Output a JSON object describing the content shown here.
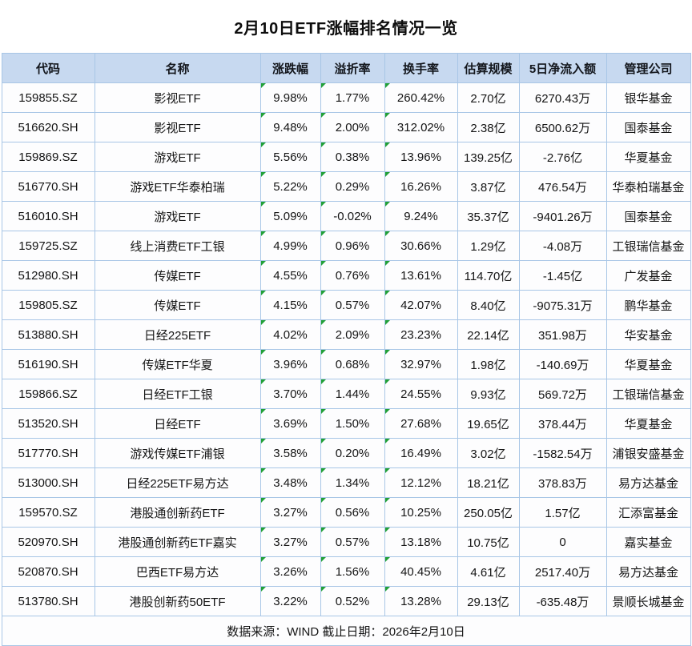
{
  "page": {
    "title": "2月10日ETF涨幅排名情况一览",
    "footer": "数据来源：WIND 截止日期：2026年2月10日"
  },
  "colors": {
    "header_bg": "#c7d9f0",
    "cell_border": "#a8c6e6",
    "outer_border": "#8fb3d8",
    "flag_triangle_green": "#21a038",
    "text": "#151515"
  },
  "icons": {
    "cell_corner_flag": "text-format-flag-icon"
  },
  "chart_data": {
    "type": "table",
    "title": "2月10日ETF涨幅排名情况一览",
    "columns": [
      "代码",
      "名称",
      "涨跌幅",
      "溢折率",
      "换手率",
      "估算规模",
      "5日净流入额",
      "管理公司"
    ],
    "flag_column_indices": [
      2,
      3,
      4
    ],
    "rows": [
      [
        "159855.SZ",
        "影视ETF",
        "9.98%",
        "1.77%",
        "260.42%",
        "2.70亿",
        "6270.43万",
        "银华基金"
      ],
      [
        "516620.SH",
        "影视ETF",
        "9.48%",
        "2.00%",
        "312.02%",
        "2.38亿",
        "6500.62万",
        "国泰基金"
      ],
      [
        "159869.SZ",
        "游戏ETF",
        "5.56%",
        "0.38%",
        "13.96%",
        "139.25亿",
        "-2.76亿",
        "华夏基金"
      ],
      [
        "516770.SH",
        "游戏ETF华泰柏瑞",
        "5.22%",
        "0.29%",
        "16.26%",
        "3.87亿",
        "476.54万",
        "华泰柏瑞基金"
      ],
      [
        "516010.SH",
        "游戏ETF",
        "5.09%",
        "-0.02%",
        "9.24%",
        "35.37亿",
        "-9401.26万",
        "国泰基金"
      ],
      [
        "159725.SZ",
        "线上消费ETF工银",
        "4.99%",
        "0.96%",
        "30.66%",
        "1.29亿",
        "-4.08万",
        "工银瑞信基金"
      ],
      [
        "512980.SH",
        "传媒ETF",
        "4.55%",
        "0.76%",
        "13.61%",
        "114.70亿",
        "-1.45亿",
        "广发基金"
      ],
      [
        "159805.SZ",
        "传媒ETF",
        "4.15%",
        "0.57%",
        "42.07%",
        "8.40亿",
        "-9075.31万",
        "鹏华基金"
      ],
      [
        "513880.SH",
        "日经225ETF",
        "4.02%",
        "2.09%",
        "23.23%",
        "22.14亿",
        "351.98万",
        "华安基金"
      ],
      [
        "516190.SH",
        "传媒ETF华夏",
        "3.96%",
        "0.68%",
        "32.97%",
        "1.98亿",
        "-140.69万",
        "华夏基金"
      ],
      [
        "159866.SZ",
        "日经ETF工银",
        "3.70%",
        "1.44%",
        "24.55%",
        "9.93亿",
        "569.72万",
        "工银瑞信基金"
      ],
      [
        "513520.SH",
        "日经ETF",
        "3.69%",
        "1.50%",
        "27.68%",
        "19.65亿",
        "378.44万",
        "华夏基金"
      ],
      [
        "517770.SH",
        "游戏传媒ETF浦银",
        "3.58%",
        "0.20%",
        "16.49%",
        "3.02亿",
        "-1582.54万",
        "浦银安盛基金"
      ],
      [
        "513000.SH",
        "日经225ETF易方达",
        "3.48%",
        "1.34%",
        "12.12%",
        "18.21亿",
        "378.83万",
        "易方达基金"
      ],
      [
        "159570.SZ",
        "港股通创新药ETF",
        "3.27%",
        "0.56%",
        "10.25%",
        "250.05亿",
        "1.57亿",
        "汇添富基金"
      ],
      [
        "520970.SH",
        "港股通创新药ETF嘉实",
        "3.27%",
        "0.57%",
        "13.18%",
        "10.75亿",
        "0",
        "嘉实基金"
      ],
      [
        "520870.SH",
        "巴西ETF易方达",
        "3.26%",
        "1.56%",
        "40.45%",
        "4.61亿",
        "2517.40万",
        "易方达基金"
      ],
      [
        "513780.SH",
        "港股创新药50ETF",
        "3.22%",
        "0.52%",
        "13.28%",
        "29.13亿",
        "-635.48万",
        "景顺长城基金"
      ]
    ],
    "footnote": "数据来源：WIND 截止日期：2026年2月10日"
  }
}
